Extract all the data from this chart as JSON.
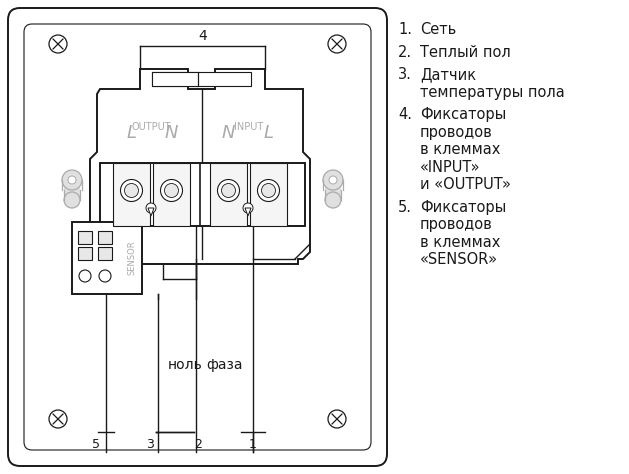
{
  "bg_color": "#ffffff",
  "fg_color": "#1a1a1a",
  "gray": "#aaaaaa",
  "light_gray": "#cccccc",
  "legend_items": [
    {
      "num": "1.",
      "lines": [
        "Сеть"
      ]
    },
    {
      "num": "2.",
      "lines": [
        "Теплый пол"
      ]
    },
    {
      "num": "3.",
      "lines": [
        "Датчик",
        "температуры пола"
      ]
    },
    {
      "num": "4.",
      "lines": [
        "Фиксаторы",
        "проводов",
        "в клеммах",
        "«INPUT»",
        "и «OUTPUT»"
      ]
    },
    {
      "num": "5.",
      "lines": [
        "Фиксаторы",
        "проводов",
        "в клеммах",
        "«SENSOR»"
      ]
    }
  ]
}
